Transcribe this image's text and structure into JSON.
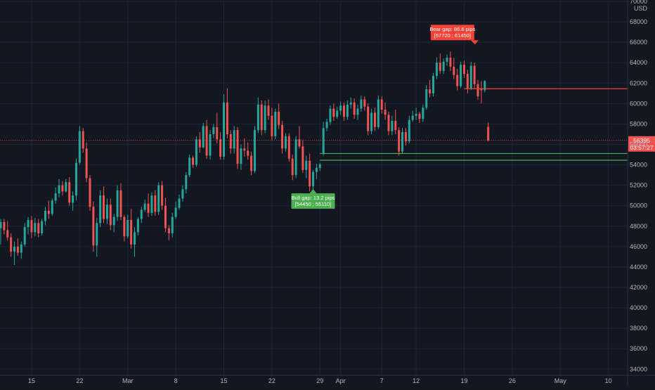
{
  "chart_data": {
    "type": "candlestick",
    "y_axis": {
      "currency": "USD",
      "ticks": [
        34000,
        36000,
        38000,
        40000,
        42000,
        44000,
        46000,
        48000,
        50000,
        52000,
        54000,
        56000,
        58000,
        60000,
        62000,
        64000,
        66000,
        68000,
        70000
      ],
      "ylim": [
        33400,
        70000
      ],
      "position": "right"
    },
    "x_axis": {
      "tick_labels": [
        {
          "day": 0,
          "label": "15"
        },
        {
          "day": 7,
          "label": "22"
        },
        {
          "day": 14,
          "label": "Mar"
        },
        {
          "day": 21,
          "label": "8"
        },
        {
          "day": 28,
          "label": "15"
        },
        {
          "day": 35,
          "label": "22"
        },
        {
          "day": 42,
          "label": "29"
        },
        {
          "day": 45,
          "label": "Apr"
        },
        {
          "day": 51,
          "label": "7"
        },
        {
          "day": 56,
          "label": "12"
        },
        {
          "day": 63,
          "label": "19"
        },
        {
          "day": 70,
          "label": "26"
        },
        {
          "day": 77,
          "label": "May"
        },
        {
          "day": 84,
          "label": "10"
        }
      ],
      "xlim": [
        -4.6,
        86.8
      ]
    },
    "grid": true,
    "colors": {
      "background": "#131722",
      "grid": "#1f2433",
      "bull": "#26a69a",
      "bear": "#ef5350",
      "text": "#b2b5be",
      "gap_bull_line": "#4caf50",
      "gap_bear_line": "#f44336"
    },
    "price_marker": {
      "price": 56395,
      "price_label": "56395",
      "countdown": "03:57:27"
    },
    "gaps": [
      {
        "kind": "bull",
        "label": "Bull gap: 13.2 pips",
        "range_text": "[54450 ; 55110]",
        "low": 54450,
        "high": 55110,
        "start_day": 42,
        "extends_right": true
      },
      {
        "kind": "bear",
        "label": "Bear gap: 86.6 pips",
        "range_text": "[57720 ; 61450]",
        "low": 57720,
        "high": 61450,
        "start_day": 63,
        "extends_right": true
      }
    ],
    "candles": [
      [
        -4.5,
        47800,
        48700,
        46200,
        48400
      ],
      [
        -4,
        48400,
        48700,
        47200,
        47600
      ],
      [
        -3.5,
        47600,
        48500,
        46600,
        46900
      ],
      [
        -3,
        46900,
        47300,
        45000,
        45500
      ],
      [
        -2.5,
        45500,
        46500,
        44200,
        46000
      ],
      [
        -2,
        46000,
        46800,
        45100,
        45400
      ],
      [
        -1.5,
        45400,
        46500,
        44800,
        46200
      ],
      [
        -1,
        46200,
        48300,
        46000,
        47900
      ],
      [
        -0.5,
        47900,
        48900,
        47200,
        48600
      ],
      [
        0,
        48600,
        49000,
        46800,
        47400
      ],
      [
        0.5,
        47400,
        48800,
        47000,
        48300
      ],
      [
        1,
        48300,
        48700,
        46900,
        47300
      ],
      [
        1.5,
        47300,
        48700,
        47100,
        48500
      ],
      [
        2,
        48500,
        49900,
        48100,
        49500
      ],
      [
        2.5,
        49500,
        50500,
        48700,
        49200
      ],
      [
        3,
        49200,
        50700,
        49000,
        50500
      ],
      [
        3.5,
        50500,
        51800,
        50200,
        51200
      ],
      [
        4,
        51200,
        52600,
        50800,
        52000
      ],
      [
        4.5,
        52000,
        52400,
        51000,
        51400
      ],
      [
        5,
        51400,
        52600,
        51300,
        52300
      ],
      [
        5.5,
        52300,
        52800,
        50000,
        50300
      ],
      [
        6,
        50300,
        51400,
        49500,
        51000
      ],
      [
        6.5,
        51000,
        54600,
        50500,
        54200
      ],
      [
        7,
        54200,
        57800,
        54000,
        57300
      ],
      [
        7.5,
        57300,
        57600,
        55200,
        55600
      ],
      [
        8,
        55600,
        56200,
        52300,
        52700
      ],
      [
        8.5,
        52700,
        53000,
        49500,
        49900
      ],
      [
        9,
        49900,
        50400,
        45500,
        46100
      ],
      [
        9.5,
        46100,
        48800,
        45000,
        48300
      ],
      [
        10,
        48300,
        51500,
        47900,
        51000
      ],
      [
        10.5,
        51000,
        51900,
        48300,
        48700
      ],
      [
        11,
        48700,
        50700,
        48200,
        50100
      ],
      [
        11.5,
        50100,
        50700,
        47600,
        48100
      ],
      [
        12,
        48100,
        49200,
        47400,
        48900
      ],
      [
        12.5,
        48900,
        52000,
        48500,
        51500
      ],
      [
        13,
        51500,
        52200,
        48600,
        48900
      ],
      [
        13.5,
        48900,
        49100,
        46500,
        47000
      ],
      [
        14,
        47000,
        49100,
        46800,
        48600
      ],
      [
        14.5,
        48600,
        49700,
        45800,
        46200
      ],
      [
        15,
        46200,
        47900,
        45000,
        47400
      ],
      [
        15.5,
        47400,
        48900,
        47100,
        48700
      ],
      [
        16,
        48700,
        49900,
        48300,
        49600
      ],
      [
        16.5,
        49600,
        50600,
        49400,
        50200
      ],
      [
        17,
        50200,
        51200,
        48900,
        49300
      ],
      [
        17.5,
        49300,
        51300,
        49000,
        51000
      ],
      [
        18,
        51000,
        51500,
        49000,
        49400
      ],
      [
        18.5,
        49400,
        52300,
        49100,
        52000
      ],
      [
        19,
        52000,
        52400,
        49600,
        50000
      ],
      [
        19.5,
        50000,
        50800,
        47400,
        47800
      ],
      [
        20,
        47800,
        48100,
        46600,
        47300
      ],
      [
        20.5,
        47300,
        49300,
        46900,
        48900
      ],
      [
        21,
        48900,
        50400,
        48700,
        49800
      ],
      [
        21.5,
        49800,
        51100,
        49600,
        50700
      ],
      [
        22,
        50700,
        52000,
        50400,
        51600
      ],
      [
        22.5,
        51600,
        53300,
        51200,
        53000
      ],
      [
        23,
        53000,
        55000,
        52800,
        54700
      ],
      [
        23.5,
        54700,
        54900,
        53700,
        54000
      ],
      [
        24,
        54000,
        56800,
        53800,
        56500
      ],
      [
        24.5,
        56500,
        57200,
        55200,
        55700
      ],
      [
        25,
        55700,
        58100,
        55600,
        57800
      ],
      [
        25.5,
        57800,
        58400,
        54600,
        54900
      ],
      [
        26,
        54900,
        57400,
        54500,
        57000
      ],
      [
        26.5,
        57000,
        58000,
        56600,
        57700
      ],
      [
        27,
        57700,
        59100,
        56100,
        56500
      ],
      [
        27.5,
        56500,
        57200,
        54500,
        54800
      ],
      [
        28,
        54800,
        60900,
        54500,
        60100
      ],
      [
        28.5,
        60100,
        61500,
        56600,
        57000
      ],
      [
        29,
        57000,
        57400,
        55100,
        55600
      ],
      [
        29.5,
        55600,
        57800,
        55100,
        57400
      ],
      [
        30,
        57400,
        57700,
        53600,
        54100
      ],
      [
        30.5,
        54100,
        56000,
        53500,
        55600
      ],
      [
        31,
        55600,
        56600,
        54800,
        55400
      ],
      [
        31.5,
        55400,
        56200,
        54500,
        54900
      ],
      [
        32,
        54900,
        55300,
        53000,
        53400
      ],
      [
        32.5,
        53400,
        57800,
        53200,
        57400
      ],
      [
        33,
        57400,
        60600,
        57100,
        59900
      ],
      [
        33.5,
        59900,
        60300,
        56900,
        57400
      ],
      [
        34,
        57400,
        60300,
        57100,
        59800
      ],
      [
        34.5,
        59800,
        60400,
        58400,
        58800
      ],
      [
        35,
        58800,
        59600,
        56400,
        56800
      ],
      [
        35.5,
        56800,
        59500,
        56500,
        59200
      ],
      [
        36,
        59200,
        60000,
        57500,
        57900
      ],
      [
        36.5,
        57900,
        58300,
        55100,
        55600
      ],
      [
        37,
        55600,
        57100,
        55300,
        56800
      ],
      [
        37.5,
        56800,
        57100,
        54300,
        54600
      ],
      [
        38,
        54600,
        55000,
        52500,
        53000
      ],
      [
        38.5,
        53000,
        56800,
        52700,
        56500
      ],
      [
        39,
        56500,
        57800,
        55600,
        55800
      ],
      [
        39.5,
        55800,
        56400,
        53200,
        53500
      ],
      [
        40,
        53500,
        54900,
        52700,
        54400
      ],
      [
        40.5,
        54400,
        55100,
        51400,
        51900
      ],
      [
        41,
        51900,
        53500,
        51500,
        53300
      ],
      [
        41.5,
        53300,
        54100,
        52600,
        53700
      ],
      [
        42,
        53700,
        54200,
        53400,
        54050
      ],
      [
        42.5,
        55110,
        58200,
        54900,
        57600
      ],
      [
        43,
        57600,
        58500,
        57300,
        58200
      ],
      [
        43.5,
        58200,
        59800,
        57900,
        59500
      ],
      [
        44,
        59500,
        60000,
        58300,
        58700
      ],
      [
        44.5,
        58700,
        59700,
        58500,
        59300
      ],
      [
        45,
        59300,
        60200,
        58900,
        59800
      ],
      [
        45.5,
        59800,
        60100,
        58300,
        58700
      ],
      [
        46,
        58700,
        60300,
        58400,
        59900
      ],
      [
        46.5,
        59900,
        60600,
        59500,
        60100
      ],
      [
        47,
        60100,
        60500,
        58500,
        58900
      ],
      [
        47.5,
        58900,
        59900,
        58400,
        59500
      ],
      [
        48,
        59500,
        60800,
        59200,
        60400
      ],
      [
        48.5,
        60400,
        60700,
        59300,
        59700
      ],
      [
        49,
        59700,
        60000,
        56900,
        57300
      ],
      [
        49.5,
        57300,
        59500,
        57000,
        59100
      ],
      [
        50,
        59100,
        59600,
        57300,
        57700
      ],
      [
        50.5,
        57700,
        60800,
        57500,
        60400
      ],
      [
        51,
        60400,
        60700,
        59000,
        59400
      ],
      [
        51.5,
        59400,
        60100,
        58400,
        58900
      ],
      [
        52,
        58900,
        59200,
        56900,
        57300
      ],
      [
        52.5,
        57300,
        58800,
        56900,
        58300
      ],
      [
        53,
        58300,
        59400,
        57000,
        57400
      ],
      [
        53.5,
        57400,
        57700,
        54900,
        55300
      ],
      [
        54,
        55300,
        57600,
        55100,
        57200
      ],
      [
        54.5,
        57200,
        57600,
        55900,
        56300
      ],
      [
        55,
        56300,
        58800,
        56100,
        58400
      ],
      [
        55.5,
        58400,
        59300,
        58200,
        58800
      ],
      [
        56,
        58800,
        59600,
        58400,
        59000
      ],
      [
        56.5,
        59000,
        59200,
        58100,
        58500
      ],
      [
        57,
        58500,
        59900,
        58200,
        59600
      ],
      [
        57.5,
        59600,
        61800,
        59400,
        61400
      ],
      [
        58,
        61400,
        62300,
        60600,
        61000
      ],
      [
        58.5,
        61000,
        63000,
        60700,
        62700
      ],
      [
        59,
        62700,
        64500,
        62400,
        64000
      ],
      [
        59.5,
        64000,
        64900,
        62900,
        63200
      ],
      [
        60,
        63200,
        64400,
        62900,
        64100
      ],
      [
        60.5,
        64100,
        64800,
        63700,
        64500
      ],
      [
        61,
        64500,
        65100,
        63200,
        63600
      ],
      [
        61.5,
        63600,
        64500,
        62400,
        62800
      ],
      [
        62,
        62800,
        63400,
        61300,
        61700
      ],
      [
        62.5,
        61700,
        64100,
        61500,
        63800
      ],
      [
        63,
        63800,
        64200,
        62500,
        62900
      ],
      [
        63.5,
        62900,
        63300,
        61000,
        61500
      ],
      [
        64,
        61500,
        64100,
        61300,
        63700
      ],
      [
        64.5,
        63700,
        64000,
        61500,
        61900
      ],
      [
        65,
        61900,
        62300,
        60400,
        60700
      ],
      [
        65.5,
        61450,
        62200,
        60000,
        61300
      ],
      [
        66,
        61300,
        62300,
        61100,
        62200
      ],
      [
        66.5,
        57720,
        57800,
        56300,
        56395
      ]
    ]
  }
}
